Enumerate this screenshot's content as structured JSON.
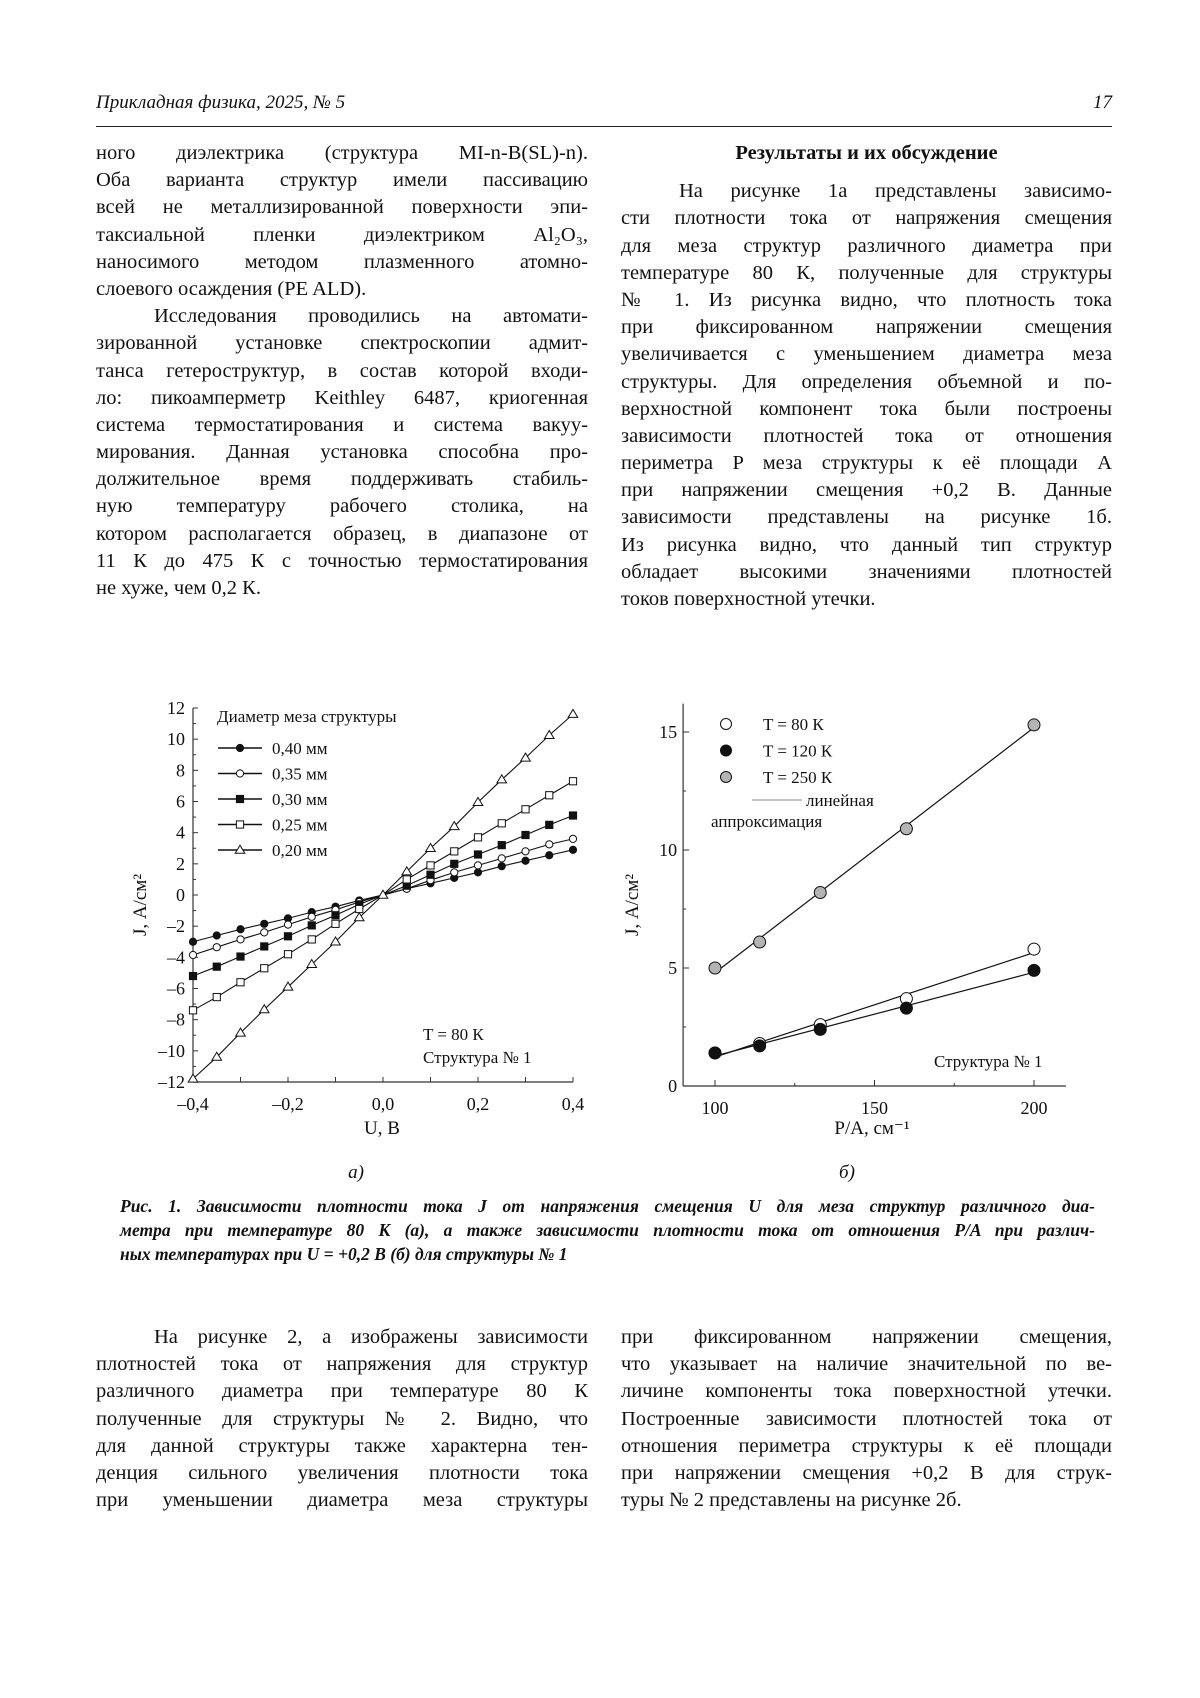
{
  "header": {
    "journal": "Прикладная физика, 2025, № 5",
    "page_number": "17"
  },
  "left_column": {
    "paragraphs": [
      {
        "indent": false,
        "lines": [
          "ного диэлектрика (структура MI-n-B(SL)-n).",
          "Оба варианта структур имели пассивацию",
          "всей не металлизированной поверхности эпи-",
          "таксиальной пленки диэлектриком Al₂O₃,",
          "наносимого методом плазменного атомно-",
          "слоевого осаждения (PE ALD)."
        ]
      },
      {
        "indent": true,
        "lines": [
          "Исследования проводились на автомати-",
          "зированной установке спектроскопии адмит-",
          "танса гетероструктур, в состав которой входи-",
          "ло: пикоамперметр Keithley 6487, криогенная",
          "система термостатирования и система вакуу-",
          "мирования. Данная установка способна про-",
          "должительное время поддерживать стабиль-",
          "ную температуру рабочего столика, на",
          "котором располагается образец, в диапазоне от",
          "11 К до 475 К с точностью термостатирования",
          "не хуже, чем 0,2 К."
        ]
      }
    ]
  },
  "right_column": {
    "heading": "Результаты и их обсуждение",
    "paragraphs": [
      {
        "indent": true,
        "lines": [
          "На рисунке 1а представлены зависимо-",
          "сти плотности тока от напряжения смещения",
          "для меза структур различного диаметра при",
          "температуре 80 К, полученные для структуры",
          "№ 1. Из рисунка видно, что плотность тока",
          "при фиксированном напряжении смещения",
          "увеличивается с уменьшением диаметра меза",
          "структуры. Для определения объемной и по-",
          "верхностной компонент тока были построены",
          "зависимости плотностей тока от отношения",
          "периметра P меза структуры к её площади A",
          "при напряжении смещения +0,2 В. Данные",
          "зависимости представлены на рисунке 1б.",
          "Из рисунка видно, что данный тип структур",
          "обладает высокими значениями плотностей",
          "токов поверхностной утечки."
        ]
      }
    ]
  },
  "figure": {
    "panel_a_label": "а)",
    "panel_b_label": "б)",
    "caption_lines": [
      "Рис. 1. Зависимости плотности тока J от напряжения смещения U для меза структур различного диа-",
      "метра при температуре 80 К (а), а также зависимости плотности тока от отношения P/A при различ-",
      "ных температурах при U = +0,2 В (б) для структуры № 1"
    ]
  },
  "chart_data": [
    {
      "type": "line",
      "xlabel": "U, В",
      "ylabel": "J, А/см²",
      "xlim": [
        -0.4,
        0.4
      ],
      "ylim": [
        -12,
        12
      ],
      "xticks": [
        "–0,4",
        "–0,2",
        "0,0",
        "0,2",
        "0,4"
      ],
      "xtick_values": [
        -0.4,
        -0.2,
        0,
        0.2,
        0.4
      ],
      "yticks": [
        "–12",
        "–10",
        "–8",
        "–6",
        "–4",
        "–2",
        "0",
        "2",
        "4",
        "6",
        "8",
        "10",
        "12"
      ],
      "ytick_values": [
        -12,
        -10,
        -8,
        -6,
        -4,
        -2,
        0,
        2,
        4,
        6,
        8,
        10,
        12
      ],
      "legend_title": "Диаметр меза структуры",
      "legend_position": "top-left",
      "annotations": [
        "T = 80 К",
        "Структура № 1"
      ],
      "x": [
        -0.4,
        -0.35,
        -0.3,
        -0.25,
        -0.2,
        -0.15,
        -0.1,
        -0.05,
        0,
        0.05,
        0.1,
        0.15,
        0.2,
        0.25,
        0.3,
        0.35,
        0.4
      ],
      "series": [
        {
          "name": "0,40 мм",
          "marker": "filled-circle",
          "values": [
            -3.0,
            -2.6,
            -2.2,
            -1.85,
            -1.5,
            -1.1,
            -0.75,
            -0.35,
            0,
            0.4,
            0.75,
            1.1,
            1.45,
            1.85,
            2.2,
            2.55,
            2.9
          ]
        },
        {
          "name": "0,35 мм",
          "marker": "open-circle",
          "values": [
            -3.85,
            -3.35,
            -2.85,
            -2.4,
            -1.9,
            -1.4,
            -0.95,
            -0.45,
            0,
            0.4,
            0.95,
            1.45,
            1.9,
            2.35,
            2.8,
            3.25,
            3.6
          ]
        },
        {
          "name": "0,30 мм",
          "marker": "filled-square",
          "values": [
            -5.2,
            -4.6,
            -3.95,
            -3.3,
            -2.65,
            -1.95,
            -1.3,
            -0.6,
            0,
            0.6,
            1.3,
            2.0,
            2.6,
            3.2,
            3.85,
            4.5,
            5.1
          ]
        },
        {
          "name": "0,25 мм",
          "marker": "open-square",
          "values": [
            -7.4,
            -6.55,
            -5.6,
            -4.7,
            -3.8,
            -2.85,
            -1.85,
            -0.9,
            0,
            1.0,
            1.9,
            2.8,
            3.7,
            4.6,
            5.5,
            6.4,
            7.3
          ]
        },
        {
          "name": "0,20 мм",
          "marker": "open-triangle",
          "values": [
            -11.8,
            -10.4,
            -8.85,
            -7.35,
            -5.9,
            -4.45,
            -3.0,
            -1.45,
            0,
            1.5,
            3.0,
            4.4,
            5.95,
            7.4,
            8.8,
            10.25,
            11.6
          ]
        }
      ]
    },
    {
      "type": "scatter",
      "xlabel": "P/A, см⁻¹",
      "ylabel": "J, А/см²",
      "xlim": [
        90,
        210
      ],
      "ylim": [
        0,
        16
      ],
      "xticks": [
        "100",
        "150",
        "200"
      ],
      "xtick_values": [
        100,
        150,
        200
      ],
      "yticks": [
        "0",
        "5",
        "10",
        "15"
      ],
      "ytick_values": [
        0,
        5,
        10,
        15
      ],
      "legend_position": "top-left",
      "fit_label_lines": [
        "линейная",
        "аппроксимация"
      ],
      "annotations": [
        "Структура № 1"
      ],
      "x": [
        100,
        114,
        133,
        160,
        200
      ],
      "series": [
        {
          "name": "T = 80 К",
          "marker": "open-circle",
          "color": "#ffffff",
          "values": [
            1.4,
            1.8,
            2.6,
            3.7,
            5.8
          ]
        },
        {
          "name": "T = 120 К",
          "marker": "filled-circle",
          "color": "#000000",
          "values": [
            1.4,
            1.7,
            2.4,
            3.3,
            4.9
          ]
        },
        {
          "name": "T = 250 К",
          "marker": "gray-circle",
          "color": "#b4b4b4",
          "values": [
            5.0,
            6.1,
            8.2,
            10.9,
            15.3
          ]
        }
      ]
    }
  ],
  "bottom_left": {
    "paragraphs": [
      {
        "indent": true,
        "lines": [
          "На рисунке 2, а изображены зависимости",
          "плотностей тока от напряжения для структур",
          "различного диаметра при температуре 80 К",
          "полученные для структуры № 2. Видно, что",
          "для данной структуры также характерна тен-",
          "денция сильного увеличения плотности тока",
          "при уменьшении диаметра меза структуры"
        ],
        "continues": true
      }
    ]
  },
  "bottom_right": {
    "paragraphs": [
      {
        "indent": false,
        "lines": [
          "при фиксированном напряжении смещения,",
          "что указывает на наличие значительной по ве-",
          "личине компоненты тока поверхностной утечки.",
          "Построенные зависимости плотностей тока от",
          "отношения периметра структуры к её площади",
          "при напряжении смещения +0,2 В для струк-",
          "туры № 2 представлены на рисунке 2б."
        ]
      }
    ]
  }
}
